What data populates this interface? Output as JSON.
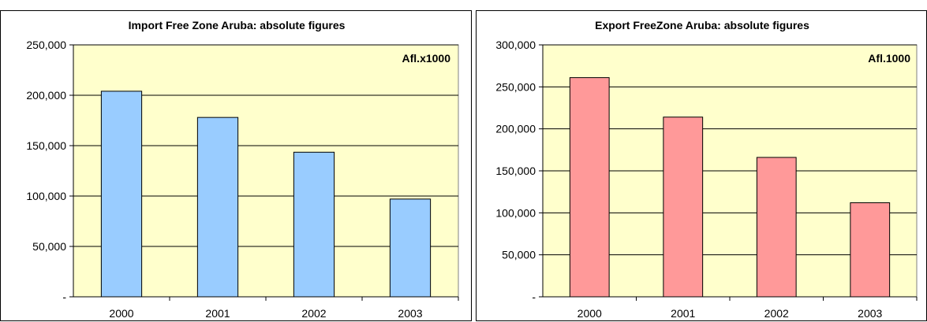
{
  "charts": [
    {
      "panel": "panel-import",
      "chart_data": {
        "type": "bar",
        "title": "Import Free Zone Aruba: absolute figures",
        "unit_label": "Afl.x1000",
        "categories": [
          "2000",
          "2001",
          "2002",
          "2003"
        ],
        "values": [
          204000,
          178000,
          143500,
          97000
        ],
        "ylim": [
          0,
          250000
        ],
        "yticks": [
          0,
          50000,
          100000,
          150000,
          200000,
          250000
        ],
        "ytick_labels": [
          "-",
          "50,000",
          "100,000",
          "150,000",
          "200,000",
          "250,000"
        ],
        "grid": true,
        "colors": {
          "bar": "#99ccff",
          "plot_bg": "#ffffcc"
        }
      }
    },
    {
      "panel": "panel-export",
      "chart_data": {
        "type": "bar",
        "title": "Export FreeZone Aruba: absolute figures",
        "unit_label": "Afl.1000",
        "categories": [
          "2000",
          "2001",
          "2002",
          "2003"
        ],
        "values": [
          261000,
          214000,
          166000,
          112000
        ],
        "ylim": [
          0,
          300000
        ],
        "yticks": [
          0,
          50000,
          100000,
          150000,
          200000,
          250000,
          300000
        ],
        "ytick_labels": [
          "-",
          "50,000",
          "100,000",
          "150,000",
          "200,000",
          "250,000",
          "300,000"
        ],
        "grid": true,
        "colors": {
          "bar": "#ff9999",
          "plot_bg": "#ffffcc"
        }
      }
    }
  ]
}
